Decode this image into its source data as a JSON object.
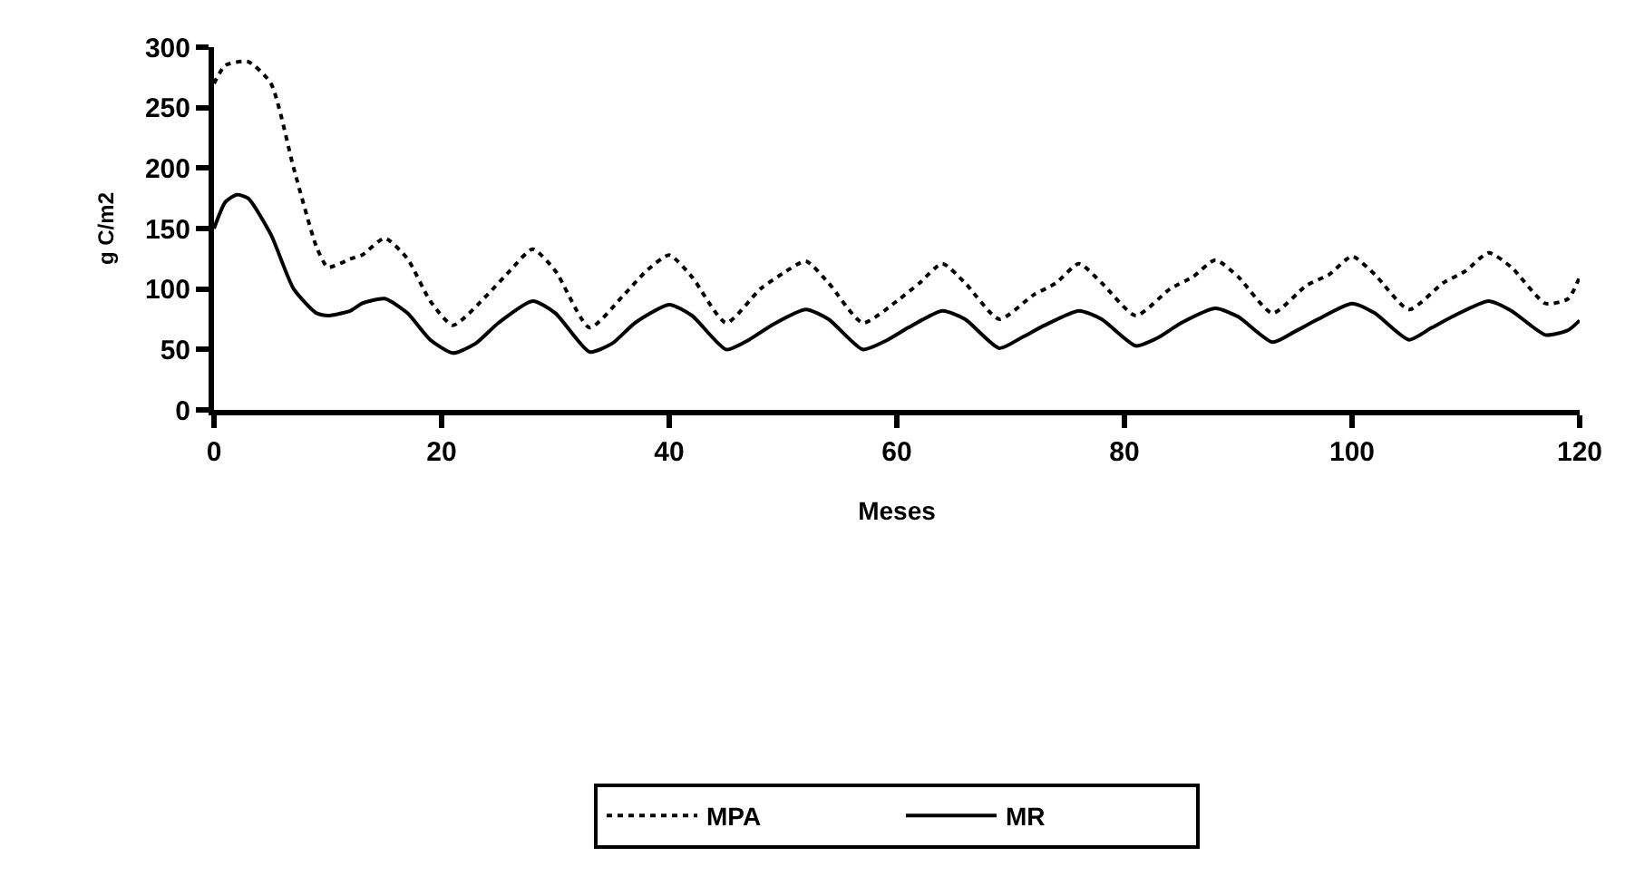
{
  "chart_data": {
    "type": "line",
    "xlabel": "Meses",
    "ylabel": "g C/m2",
    "xlim": [
      0,
      120
    ],
    "ylim": [
      0,
      300
    ],
    "xticks": [
      0,
      20,
      40,
      60,
      80,
      100,
      120
    ],
    "yticks": [
      0,
      50,
      100,
      150,
      200,
      250,
      300
    ],
    "legend": "bottom",
    "marker": "none",
    "series": [
      {
        "name": "MPA",
        "color": "#000000",
        "line_style": "dotted",
        "x": [
          0,
          1,
          3,
          5,
          7,
          9,
          10,
          12,
          13,
          15,
          17,
          19,
          21,
          24,
          26,
          28,
          30,
          33,
          36,
          38,
          40,
          42,
          45,
          48,
          50,
          52,
          54,
          57,
          60,
          62,
          64,
          66,
          69,
          72,
          74,
          76,
          78,
          81,
          84,
          86,
          88,
          90,
          93,
          96,
          98,
          100,
          102,
          105,
          108,
          110,
          112,
          114,
          117,
          119,
          120
        ],
        "values": [
          270,
          285,
          288,
          270,
          200,
          135,
          118,
          125,
          128,
          142,
          125,
          90,
          70,
          95,
          115,
          133,
          115,
          68,
          95,
          115,
          128,
          110,
          72,
          100,
          113,
          123,
          105,
          72,
          90,
          105,
          121,
          105,
          75,
          95,
          105,
          121,
          105,
          78,
          100,
          110,
          124,
          110,
          80,
          103,
          112,
          127,
          112,
          83,
          105,
          115,
          130,
          118,
          88,
          92,
          110
        ]
      },
      {
        "name": "MR",
        "color": "#000000",
        "line_style": "solid",
        "x": [
          0,
          1,
          2,
          3,
          5,
          7,
          9,
          10,
          12,
          13,
          15,
          17,
          19,
          21,
          23,
          25,
          28,
          30,
          33,
          35,
          37,
          40,
          42,
          45,
          47,
          49,
          52,
          54,
          57,
          59,
          61,
          64,
          66,
          69,
          71,
          73,
          76,
          78,
          81,
          83,
          85,
          88,
          90,
          93,
          95,
          97,
          100,
          102,
          105,
          107,
          109,
          112,
          114,
          117,
          119,
          120
        ],
        "values": [
          150,
          172,
          178,
          175,
          145,
          100,
          80,
          78,
          82,
          88,
          92,
          80,
          58,
          47,
          55,
          72,
          90,
          80,
          48,
          55,
          72,
          87,
          78,
          50,
          58,
          70,
          83,
          75,
          50,
          57,
          68,
          82,
          75,
          51,
          60,
          70,
          82,
          75,
          53,
          60,
          72,
          84,
          77,
          56,
          65,
          75,
          88,
          80,
          58,
          68,
          78,
          90,
          82,
          62,
          66,
          74
        ]
      }
    ]
  }
}
